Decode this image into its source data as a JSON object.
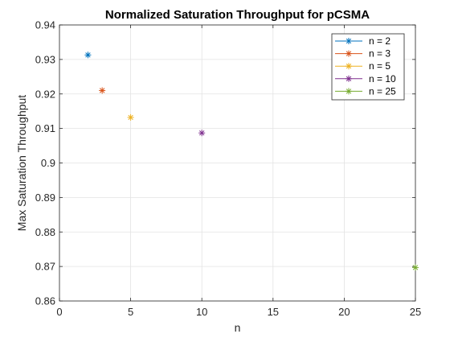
{
  "chart_data": {
    "type": "scatter",
    "title": "Normalized Saturation Throughput for pCSMA",
    "xlabel": "n",
    "ylabel": "Max Saturation Throughput",
    "xlim": [
      0,
      25
    ],
    "ylim": [
      0.86,
      0.94
    ],
    "xticks": [
      0,
      5,
      10,
      15,
      20,
      25
    ],
    "xtick_labels": [
      "0",
      "5",
      "10",
      "15",
      "20",
      "25"
    ],
    "yticks": [
      0.86,
      0.87,
      0.88,
      0.89,
      0.9,
      0.91,
      0.92,
      0.93,
      0.94
    ],
    "ytick_labels": [
      "0.86",
      "0.87",
      "0.88",
      "0.89",
      "0.9",
      "0.91",
      "0.92",
      "0.93",
      "0.94"
    ],
    "grid": true,
    "marker": "asterisk",
    "legend": {
      "placement": "top-right"
    },
    "series": [
      {
        "name": "n = 2",
        "x": 2,
        "y": 0.9313,
        "color": "#0072BD"
      },
      {
        "name": "n = 3",
        "x": 3,
        "y": 0.921,
        "color": "#D95319"
      },
      {
        "name": "n = 5",
        "x": 5,
        "y": 0.9132,
        "color": "#EDB120"
      },
      {
        "name": "n = 10",
        "x": 10,
        "y": 0.9087,
        "color": "#7E2F8E"
      },
      {
        "name": "n = 25",
        "x": 25,
        "y": 0.8697,
        "color": "#77AC30"
      }
    ]
  }
}
